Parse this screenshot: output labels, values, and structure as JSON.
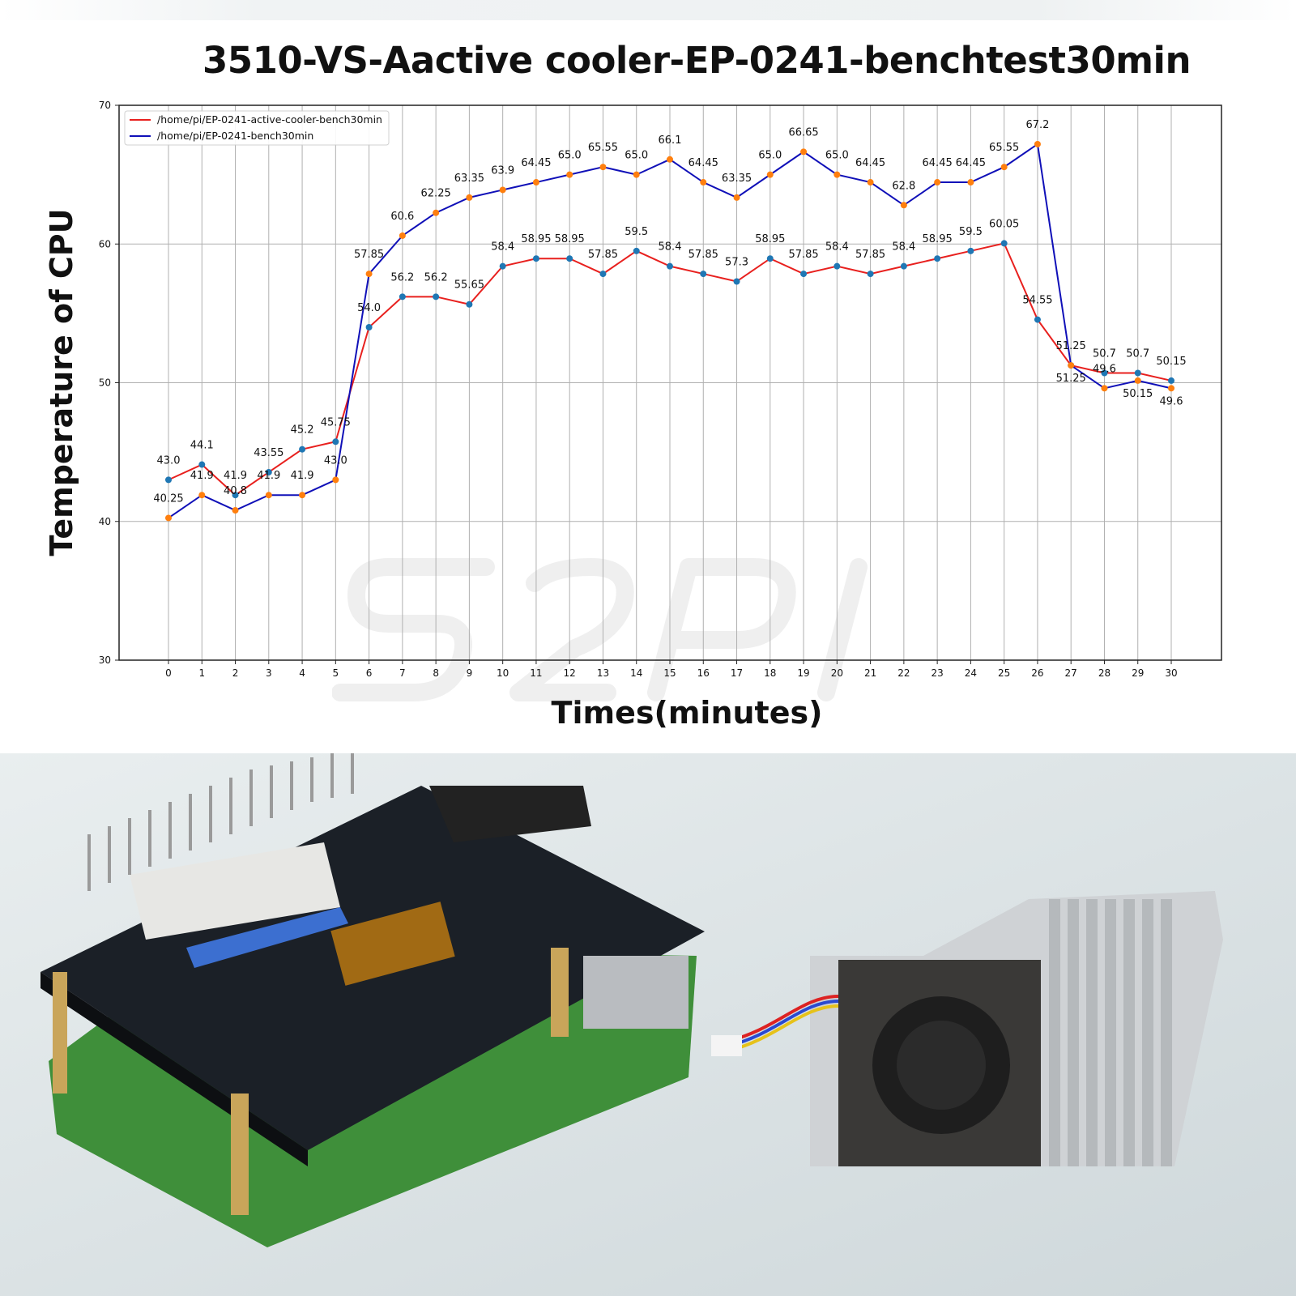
{
  "title": "3510-VS-Aactive cooler-EP-0241-benchtest30min",
  "watermark": "52Pi",
  "chart_data": {
    "type": "line",
    "title": "3510-VS-Aactive cooler-EP-0241-benchtest30min",
    "xlabel": "Times(minutes)",
    "ylabel": "Temperature of CPU",
    "x": [
      0,
      1,
      2,
      3,
      4,
      5,
      6,
      7,
      8,
      9,
      10,
      11,
      12,
      13,
      14,
      15,
      16,
      17,
      18,
      19,
      20,
      21,
      22,
      23,
      24,
      25,
      26,
      27,
      28,
      29,
      30
    ],
    "xlim": [
      -1.5,
      31.5
    ],
    "ylim": [
      30,
      70
    ],
    "yticks": [
      30,
      40,
      50,
      60,
      70
    ],
    "grid": true,
    "legend": "top-left",
    "series": [
      {
        "name": "/home/pi/EP-0241-active-cooler-bench30min",
        "color": "#e8201e",
        "marker_color": "#1f77b4",
        "values": [
          43.0,
          44.1,
          41.9,
          43.55,
          45.2,
          45.75,
          54.0,
          56.2,
          56.2,
          55.65,
          58.4,
          58.95,
          58.95,
          57.85,
          59.5,
          58.4,
          57.85,
          57.3,
          58.95,
          57.85,
          58.4,
          57.85,
          58.4,
          58.95,
          59.5,
          60.05,
          54.55,
          51.25,
          50.7,
          50.7,
          50.15
        ]
      },
      {
        "name": "/home/pi/EP-0241-bench30min",
        "color": "#1010b8",
        "marker_color": "#ff7f0e",
        "values": [
          40.25,
          41.9,
          40.8,
          41.9,
          41.9,
          43.0,
          57.85,
          60.6,
          62.25,
          63.35,
          63.9,
          64.45,
          65.0,
          65.55,
          65.0,
          66.1,
          64.45,
          63.35,
          65.0,
          66.65,
          65.0,
          64.45,
          62.8,
          64.45,
          64.45,
          65.55,
          67.2,
          51.25,
          49.6,
          50.15,
          49.6
        ]
      }
    ]
  }
}
